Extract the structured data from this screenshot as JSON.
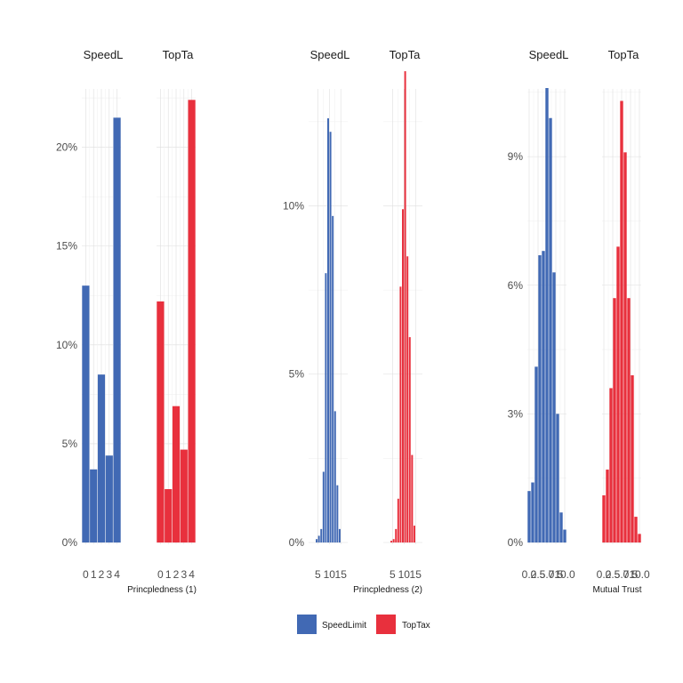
{
  "colors": {
    "SpeedLimit": "#4169b4",
    "TopTax": "#e8303d"
  },
  "legend": {
    "position": "bottom",
    "entries": [
      "SpeedLimit",
      "TopTax"
    ]
  },
  "chart_data": [
    {
      "type": "bar",
      "subtype": "faceted-histogram",
      "xlabel": "Princpledness (1)",
      "ylabel": "",
      "ylim": [
        0,
        0.23
      ],
      "y_ticks": [
        0,
        0.05,
        0.1,
        0.15,
        0.2
      ],
      "y_tick_labels": [
        "0%",
        "5%",
        "10%",
        "15%",
        "20%"
      ],
      "xlim": [
        -0.5,
        4.5
      ],
      "x_ticks": [
        0,
        1,
        2,
        3,
        4
      ],
      "x_tick_labels": [
        "0",
        "1",
        "2",
        "3",
        "4"
      ],
      "facets": [
        {
          "label": "SpeedLimit",
          "strip": "SpeedL",
          "series": "SpeedLimit",
          "bins": [
            [
              -0.5,
              0.5
            ],
            [
              0.5,
              1.5
            ],
            [
              1.5,
              2.5
            ],
            [
              2.5,
              3.5
            ],
            [
              3.5,
              4.5
            ]
          ],
          "values": [
            0.13,
            0.037,
            0.085,
            0.044,
            0.215
          ]
        },
        {
          "label": "TopTax",
          "strip": "TopTa",
          "series": "TopTax",
          "bins": [
            [
              -0.5,
              0.5
            ],
            [
              0.5,
              1.5
            ],
            [
              1.5,
              2.5
            ],
            [
              2.5,
              3.5
            ],
            [
              3.5,
              4.5
            ]
          ],
          "values": [
            0.122,
            0.027,
            0.069,
            0.047,
            0.224
          ]
        }
      ]
    },
    {
      "type": "bar",
      "subtype": "faceted-histogram",
      "xlabel": "Princpledness (2)",
      "ylabel": "",
      "ylim": [
        0,
        0.135
      ],
      "y_ticks": [
        0,
        0.05,
        0.1
      ],
      "y_tick_labels": [
        "0%",
        "5%",
        "10%"
      ],
      "xlim": [
        1,
        18
      ],
      "x_ticks": [
        5,
        10,
        15
      ],
      "x_tick_labels": [
        "5",
        "10",
        "15"
      ],
      "facets": [
        {
          "label": "SpeedLimit",
          "strip": "SpeedL",
          "series": "SpeedLimit",
          "bins": [
            [
              4,
              5
            ],
            [
              5,
              6
            ],
            [
              6,
              7
            ],
            [
              7,
              8
            ],
            [
              8,
              9
            ],
            [
              9,
              10
            ],
            [
              10,
              11
            ],
            [
              11,
              12
            ],
            [
              12,
              13
            ],
            [
              13,
              14
            ],
            [
              14,
              15
            ]
          ],
          "values": [
            0.001,
            0.002,
            0.004,
            0.021,
            0.08,
            0.126,
            0.122,
            0.097,
            0.039,
            0.017,
            0.004
          ]
        },
        {
          "label": "TopTax",
          "strip": "TopTa",
          "series": "TopTax",
          "bins": [
            [
              4,
              5
            ],
            [
              5,
              6
            ],
            [
              6,
              7
            ],
            [
              7,
              8
            ],
            [
              8,
              9
            ],
            [
              9,
              10
            ],
            [
              10,
              11
            ],
            [
              11,
              12
            ],
            [
              12,
              13
            ],
            [
              13,
              14
            ],
            [
              14,
              15
            ]
          ],
          "values": [
            0.0005,
            0.001,
            0.004,
            0.013,
            0.076,
            0.099,
            0.14,
            0.085,
            0.061,
            0.026,
            0.005
          ]
        }
      ]
    },
    {
      "type": "bar",
      "subtype": "faceted-histogram",
      "xlabel": "Mutual Trust",
      "ylabel": "",
      "ylim": [
        0,
        0.106
      ],
      "y_ticks": [
        0,
        0.03,
        0.06,
        0.09
      ],
      "y_tick_labels": [
        "0%",
        "3%",
        "6%",
        "9%"
      ],
      "xlim": [
        -0.5,
        10.5
      ],
      "x_ticks": [
        0,
        2.5,
        5,
        7.5,
        10
      ],
      "x_tick_labels": [
        "0.0",
        "2.5",
        "5.0",
        "7.5",
        "10.0"
      ],
      "facets": [
        {
          "label": "SpeedLimit",
          "strip": "SpeedL",
          "series": "SpeedLimit",
          "bins": [
            [
              -0.5,
              0.5
            ],
            [
              0.5,
              1.5
            ],
            [
              1.5,
              2.5
            ],
            [
              2.5,
              3.5
            ],
            [
              3.5,
              4.5
            ],
            [
              4.5,
              5.5
            ],
            [
              5.5,
              6.5
            ],
            [
              6.5,
              7.5
            ],
            [
              7.5,
              8.5
            ],
            [
              8.5,
              9.5
            ],
            [
              9.5,
              10.5
            ]
          ],
          "values": [
            0.012,
            0.014,
            0.041,
            0.067,
            0.068,
            0.106,
            0.099,
            0.063,
            0.03,
            0.007,
            0.003
          ]
        },
        {
          "label": "TopTax",
          "strip": "TopTa",
          "series": "TopTax",
          "bins": [
            [
              -0.5,
              0.5
            ],
            [
              0.5,
              1.5
            ],
            [
              1.5,
              2.5
            ],
            [
              2.5,
              3.5
            ],
            [
              3.5,
              4.5
            ],
            [
              4.5,
              5.5
            ],
            [
              5.5,
              6.5
            ],
            [
              6.5,
              7.5
            ],
            [
              7.5,
              8.5
            ],
            [
              8.5,
              9.5
            ],
            [
              9.5,
              10.5
            ]
          ],
          "values": [
            0.011,
            0.017,
            0.036,
            0.057,
            0.069,
            0.103,
            0.091,
            0.057,
            0.039,
            0.006,
            0.002
          ]
        }
      ]
    }
  ]
}
